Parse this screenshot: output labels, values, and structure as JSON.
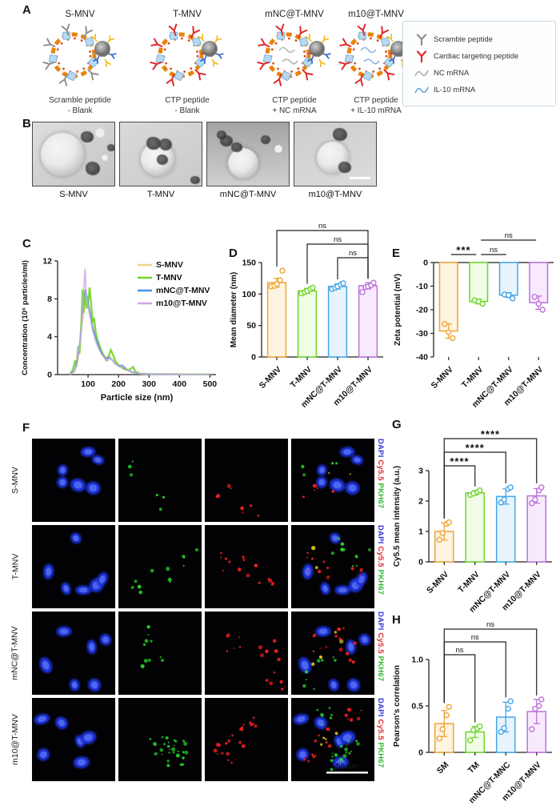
{
  "panels": {
    "A": {
      "label": "A",
      "vesicles": [
        {
          "title": "S-MNV",
          "caption1": "Scramble peptide",
          "caption2": "- Blank",
          "peptide_color": "#8f8f8f",
          "mrna": "none"
        },
        {
          "title": "T-MNV",
          "caption1": "CTP peptide",
          "caption2": "- Blank",
          "peptide_color": "#e02828",
          "mrna": "none"
        },
        {
          "title": "mNC@T-MNV",
          "caption1": "CTP peptide",
          "caption2": "+ NC mRNA",
          "peptide_color": "#e02828",
          "mrna": "#b5b5b5"
        },
        {
          "title": "m10@T-MNV",
          "caption1": "CTP peptide",
          "caption2": "+ IL-10 mRNA",
          "peptide_color": "#e02828",
          "mrna": "#8fb4e3"
        }
      ],
      "legend": [
        {
          "label": "Scramble peptide",
          "icon": "y-antibody",
          "color": "#8f8f8f"
        },
        {
          "label": "Cardiac targeting peptide",
          "icon": "y-antibody",
          "color": "#e02828"
        },
        {
          "label": "NC mRNA",
          "icon": "squiggle",
          "color": "#b5b5b5"
        },
        {
          "label": "IL-10 mRNA",
          "icon": "squiggle",
          "color": "#7aa8d8"
        }
      ]
    },
    "B": {
      "label": "B",
      "images": [
        "S-MNV",
        "T-MNV",
        "mNC@T-MNV",
        "m10@T-MNV"
      ]
    },
    "C": {
      "label": "C"
    },
    "D": {
      "label": "D"
    },
    "E": {
      "label": "E"
    },
    "F": {
      "label": "F",
      "rows": [
        "S-MNV",
        "T-MNV",
        "mNC@T-MNV",
        "m10@T-MNV"
      ],
      "channels": [
        {
          "name": "DAPI",
          "color": "#3434d6"
        },
        {
          "name": "Cy5.5",
          "color": "#e02828"
        },
        {
          "name": "PKH67",
          "color": "#2fb52f"
        }
      ],
      "scale_bar": "50 μm"
    },
    "G": {
      "label": "G"
    },
    "H": {
      "label": "H"
    }
  },
  "chart_data": [
    {
      "id": "chart-c",
      "type": "line",
      "xlabel": "Particle size (nm)",
      "ylabel": "Concentration (10⁶ particles/ml)",
      "xlim": [
        0,
        520
      ],
      "ylim": [
        0,
        12
      ],
      "xticks": [
        100,
        200,
        300,
        400,
        500
      ],
      "yticks": [
        0,
        4,
        8,
        12
      ],
      "legend_position": "top-right",
      "series": [
        {
          "name": "S-MNV",
          "color": "#ecd78e",
          "width": 1.8,
          "points": [
            [
              40,
              0
            ],
            [
              55,
              0.3
            ],
            [
              65,
              1.2
            ],
            [
              75,
              3.5
            ],
            [
              85,
              6.5
            ],
            [
              90,
              7.8
            ],
            [
              95,
              8.2
            ],
            [
              100,
              7.6
            ],
            [
              110,
              6.2
            ],
            [
              120,
              4.8
            ],
            [
              130,
              3.6
            ],
            [
              140,
              2.8
            ],
            [
              150,
              2.2
            ],
            [
              160,
              1.8
            ],
            [
              170,
              1.9
            ],
            [
              180,
              1.6
            ],
            [
              190,
              1.2
            ],
            [
              200,
              0.9
            ],
            [
              215,
              0.6
            ],
            [
              230,
              0.4
            ],
            [
              250,
              0.2
            ],
            [
              270,
              0.1
            ],
            [
              300,
              0.05
            ],
            [
              350,
              0.03
            ],
            [
              400,
              0.02
            ],
            [
              450,
              0.02
            ],
            [
              500,
              0.02
            ]
          ]
        },
        {
          "name": "T-MNV",
          "color": "#6fd621",
          "width": 2.3,
          "points": [
            [
              40,
              0
            ],
            [
              50,
              0.5
            ],
            [
              58,
              1.5
            ],
            [
              62,
              0.8
            ],
            [
              68,
              3.0
            ],
            [
              72,
              2.2
            ],
            [
              78,
              5.5
            ],
            [
              82,
              9.0
            ],
            [
              86,
              6.5
            ],
            [
              90,
              8.8
            ],
            [
              95,
              7.0
            ],
            [
              100,
              7.4
            ],
            [
              105,
              9.2
            ],
            [
              110,
              7.5
            ],
            [
              115,
              5.5
            ],
            [
              120,
              6.0
            ],
            [
              125,
              4.5
            ],
            [
              130,
              3.8
            ],
            [
              138,
              3.0
            ],
            [
              145,
              2.4
            ],
            [
              152,
              1.9
            ],
            [
              160,
              1.5
            ],
            [
              168,
              2.0
            ],
            [
              175,
              2.6
            ],
            [
              182,
              2.1
            ],
            [
              190,
              1.4
            ],
            [
              200,
              1.0
            ],
            [
              210,
              0.8
            ],
            [
              220,
              0.6
            ],
            [
              235,
              0.5
            ],
            [
              248,
              0.8
            ],
            [
              255,
              0.3
            ],
            [
              270,
              0.1
            ],
            [
              300,
              0.06
            ],
            [
              350,
              0.05
            ],
            [
              400,
              0.03
            ],
            [
              450,
              0.02
            ],
            [
              500,
              0.02
            ]
          ]
        },
        {
          "name": "mNC@T-MNV",
          "color": "#4a90e2",
          "width": 1.6,
          "points": [
            [
              40,
              0
            ],
            [
              55,
              0.4
            ],
            [
              65,
              1.5
            ],
            [
              75,
              4.0
            ],
            [
              82,
              6.8
            ],
            [
              88,
              8.6
            ],
            [
              92,
              9.0
            ],
            [
              98,
              8.0
            ],
            [
              105,
              6.8
            ],
            [
              112,
              5.4
            ],
            [
              120,
              4.4
            ],
            [
              130,
              3.4
            ],
            [
              140,
              2.6
            ],
            [
              150,
              2.0
            ],
            [
              160,
              1.7
            ],
            [
              170,
              1.8
            ],
            [
              180,
              1.5
            ],
            [
              190,
              1.1
            ],
            [
              200,
              0.9
            ],
            [
              212,
              1.0
            ],
            [
              220,
              0.7
            ],
            [
              235,
              0.4
            ],
            [
              250,
              0.2
            ],
            [
              270,
              0.1
            ],
            [
              300,
              0.05
            ],
            [
              350,
              0.03
            ],
            [
              400,
              0.02
            ],
            [
              450,
              0.02
            ],
            [
              500,
              0.02
            ]
          ]
        },
        {
          "name": "m10@T-MNV",
          "color": "#cda8e6",
          "width": 1.6,
          "points": [
            [
              40,
              0
            ],
            [
              55,
              0.3
            ],
            [
              65,
              1.3
            ],
            [
              75,
              3.8
            ],
            [
              82,
              6.5
            ],
            [
              86,
              9.0
            ],
            [
              90,
              11.2
            ],
            [
              94,
              8.5
            ],
            [
              100,
              7.2
            ],
            [
              108,
              5.8
            ],
            [
              115,
              4.6
            ],
            [
              125,
              3.5
            ],
            [
              135,
              2.7
            ],
            [
              145,
              2.1
            ],
            [
              155,
              1.7
            ],
            [
              165,
              1.5
            ],
            [
              175,
              1.7
            ],
            [
              185,
              1.3
            ],
            [
              195,
              1.0
            ],
            [
              205,
              0.8
            ],
            [
              218,
              0.9
            ],
            [
              230,
              0.5
            ],
            [
              245,
              0.3
            ],
            [
              260,
              0.15
            ],
            [
              280,
              0.08
            ],
            [
              300,
              0.05
            ],
            [
              350,
              0.03
            ],
            [
              400,
              0.02
            ],
            [
              450,
              0.02
            ],
            [
              500,
              0.02
            ]
          ]
        }
      ]
    },
    {
      "id": "chart-d",
      "type": "bar",
      "ylabel": "Mean diameter (nm)",
      "ylim": [
        0,
        150
      ],
      "yticks": [
        0,
        50,
        100,
        150
      ],
      "categories": [
        "S-MNV",
        "T-MNV",
        "mNC@T-MNV",
        "m10@T-MNV"
      ],
      "values": [
        118,
        105,
        112,
        113
      ],
      "errors": [
        7,
        4,
        4,
        5
      ],
      "points": [
        [
          112,
          113,
          116,
          122,
          137
        ],
        [
          101,
          103,
          105,
          108,
          110
        ],
        [
          108,
          110,
          112,
          115,
          117
        ],
        [
          103,
          111,
          112,
          114,
          118
        ]
      ],
      "colors": [
        "#f0a335",
        "#6fd62b",
        "#45a7e6",
        "#bd6fdd"
      ],
      "fills": [
        "#fdf4e1",
        "#f0fce5",
        "#e7f4fd",
        "#f7eafc"
      ],
      "sig_style": "bracket",
      "sig": [
        {
          "a": 0,
          "b": 3,
          "label": "ns",
          "level": 2
        },
        {
          "a": 1,
          "b": 3,
          "label": "ns",
          "level": 1
        },
        {
          "a": 2,
          "b": 3,
          "label": "ns",
          "level": 0
        }
      ]
    },
    {
      "id": "chart-e",
      "type": "bar",
      "ylabel": "Zeta potential (mV)",
      "ylim": [
        -40,
        0
      ],
      "yticks": [
        0,
        -10,
        -20,
        -30,
        -40
      ],
      "categories": [
        "S-MNV",
        "T-MNV",
        "mNC@T-MNV",
        "m10@T-MNV"
      ],
      "values": [
        -29,
        -16.5,
        -13.8,
        -17
      ],
      "errors": [
        3,
        1,
        1,
        2.8
      ],
      "points": [
        [
          -26,
          -29.5,
          -32
        ],
        [
          -16,
          -16.5,
          -17.5
        ],
        [
          -13.5,
          -13.8,
          -15.2
        ],
        [
          -14.5,
          -17.5,
          -20
        ]
      ],
      "colors": [
        "#f0a335",
        "#6fd62b",
        "#45a7e6",
        "#bd6fdd"
      ],
      "fills": [
        "#fdf4e1",
        "#f0fce5",
        "#e7f4fd",
        "#f7eafc"
      ],
      "sig_style": "line",
      "sig": [
        {
          "a": 0,
          "b": 1,
          "label": "***",
          "level": 0
        },
        {
          "a": 1,
          "b": 2,
          "label": "ns",
          "level": 0
        },
        {
          "a": 1,
          "b": 3,
          "label": "ns",
          "level": 1
        }
      ]
    },
    {
      "id": "chart-g",
      "type": "bar",
      "ylabel": "Cy5.5 mean intensity (a.u.)",
      "ylim": [
        0,
        3
      ],
      "yticks": [
        0,
        1,
        2,
        3
      ],
      "categories": [
        "S-MNV",
        "T-MNV",
        "mNC@T-MNV",
        "m10@T-MNV"
      ],
      "values": [
        1.0,
        2.27,
        2.15,
        2.17
      ],
      "errors": [
        0.28,
        0.07,
        0.25,
        0.24
      ],
      "points": [
        [
          0.73,
          0.95,
          1.25,
          1.3
        ],
        [
          2.2,
          2.25,
          2.3,
          2.35
        ],
        [
          1.95,
          2.05,
          2.4,
          2.45
        ],
        [
          1.93,
          2.05,
          2.35,
          2.45
        ]
      ],
      "colors": [
        "#f0a335",
        "#6fd62b",
        "#45a7e6",
        "#bd6fdd"
      ],
      "fills": [
        "#fdf4e1",
        "#f0fce5",
        "#e7f4fd",
        "#f7eafc"
      ],
      "sig_style": "bracket",
      "sig": [
        {
          "a": 0,
          "b": 1,
          "label": "****",
          "level": 0
        },
        {
          "a": 0,
          "b": 2,
          "label": "****",
          "level": 1
        },
        {
          "a": 0,
          "b": 3,
          "label": "****",
          "level": 2
        }
      ]
    },
    {
      "id": "chart-h",
      "type": "bar",
      "ylabel": "Pearson's correlation",
      "ylim": [
        0,
        1
      ],
      "yticks": [
        0,
        0.5,
        1.0
      ],
      "ytick_labels": [
        "0",
        "0.5",
        "1.0"
      ],
      "categories": [
        "SM",
        "TM",
        "mNC@T-MNC",
        "m10@T-MNV"
      ],
      "values": [
        0.31,
        0.22,
        0.38,
        0.44
      ],
      "errors": [
        0.14,
        0.06,
        0.16,
        0.13
      ],
      "points": [
        [
          0.15,
          0.25,
          0.4,
          0.49
        ],
        [
          0.13,
          0.24,
          0.26,
          0.28
        ],
        [
          0.22,
          0.26,
          0.47,
          0.55
        ],
        [
          0.25,
          0.47,
          0.5,
          0.57
        ]
      ],
      "colors": [
        "#f0a335",
        "#6fd62b",
        "#45a7e6",
        "#bd6fdd"
      ],
      "fills": [
        "#fdf4e1",
        "#f0fce5",
        "#e7f4fd",
        "#f7eafc"
      ],
      "sig_style": "bracket",
      "sig": [
        {
          "a": 0,
          "b": 1,
          "label": "ns",
          "level": 0
        },
        {
          "a": 0,
          "b": 2,
          "label": "ns",
          "level": 1
        },
        {
          "a": 0,
          "b": 3,
          "label": "ns",
          "level": 2
        }
      ]
    }
  ]
}
